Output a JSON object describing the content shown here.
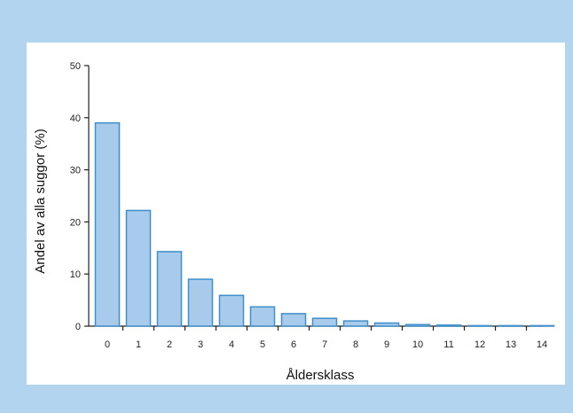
{
  "colors": {
    "background": "#b3d4ee",
    "panel": "#ffffff",
    "bar_fill": "#a9cbeb",
    "bar_stroke": "#3f8fca",
    "axis": "#222222"
  },
  "chart_data": {
    "type": "bar",
    "categories": [
      "0",
      "1",
      "2",
      "3",
      "4",
      "5",
      "6",
      "7",
      "8",
      "9",
      "10",
      "11",
      "12",
      "13",
      "14"
    ],
    "values": [
      39,
      22.2,
      14.3,
      9,
      5.9,
      3.7,
      2.4,
      1.5,
      1.0,
      0.6,
      0.3,
      0.2,
      0.1,
      0.05,
      0.03
    ],
    "title": "",
    "xlabel": "Åldersklass",
    "ylabel": "Andel av alla suggor (%)",
    "ylim": [
      0,
      50
    ],
    "yticks": [
      "0",
      "10",
      "20",
      "30",
      "40",
      "50"
    ],
    "grid": false,
    "legend": "none"
  }
}
